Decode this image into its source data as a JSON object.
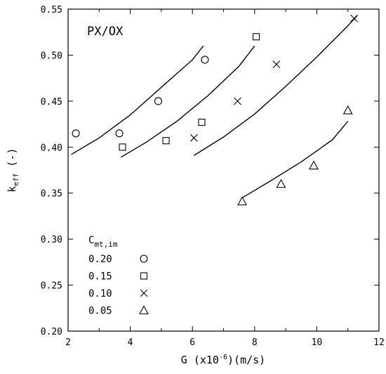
{
  "chart_data": {
    "type": "scatter",
    "title": "PX/OX",
    "xlabel": {
      "main": "G (x10",
      "sup": "-6",
      "rest": ")(m/s)"
    },
    "ylabel": {
      "main": "k",
      "sub": "eff",
      "rest": " (-)"
    },
    "xlim": [
      2,
      12
    ],
    "ylim": [
      0.2,
      0.55
    ],
    "x_ticks": [
      2,
      4,
      6,
      8,
      10,
      12
    ],
    "y_ticks": [
      0.2,
      0.25,
      0.3,
      0.35,
      0.4,
      0.45,
      0.5,
      0.55
    ],
    "y_tick_labels": [
      "0.20",
      "0.25",
      "0.30",
      "0.35",
      "0.40",
      "0.45",
      "0.50",
      "0.55"
    ],
    "legend": {
      "title_main": "C",
      "title_sub": "mt,im",
      "placement": "bottom-left"
    },
    "series": [
      {
        "name": "0.20",
        "marker": "circle",
        "points": [
          [
            2.25,
            0.415
          ],
          [
            3.65,
            0.415
          ],
          [
            4.9,
            0.45
          ],
          [
            6.4,
            0.495
          ]
        ],
        "fit": [
          [
            2.1,
            0.392
          ],
          [
            3.0,
            0.41
          ],
          [
            4.0,
            0.435
          ],
          [
            5.0,
            0.465
          ],
          [
            6.0,
            0.495
          ],
          [
            6.35,
            0.51
          ]
        ]
      },
      {
        "name": "0.15",
        "marker": "square",
        "points": [
          [
            3.75,
            0.4
          ],
          [
            5.15,
            0.407
          ],
          [
            6.3,
            0.427
          ],
          [
            8.05,
            0.52
          ]
        ],
        "fit": [
          [
            3.7,
            0.389
          ],
          [
            4.5,
            0.405
          ],
          [
            5.5,
            0.428
          ],
          [
            6.5,
            0.456
          ],
          [
            7.5,
            0.488
          ],
          [
            8.0,
            0.51
          ]
        ]
      },
      {
        "name": "0.10",
        "marker": "cross",
        "points": [
          [
            6.05,
            0.41
          ],
          [
            7.45,
            0.45
          ],
          [
            8.7,
            0.49
          ],
          [
            11.2,
            0.54
          ]
        ],
        "fit": [
          [
            6.05,
            0.391
          ],
          [
            7.0,
            0.411
          ],
          [
            8.0,
            0.436
          ],
          [
            9.0,
            0.466
          ],
          [
            10.0,
            0.498
          ],
          [
            11.0,
            0.532
          ],
          [
            11.3,
            0.543
          ]
        ]
      },
      {
        "name": "0.05",
        "marker": "triangle",
        "points": [
          [
            7.6,
            0.341
          ],
          [
            8.85,
            0.36
          ],
          [
            9.9,
            0.38
          ],
          [
            11.0,
            0.44
          ]
        ],
        "fit": [
          [
            7.6,
            0.345
          ],
          [
            8.5,
            0.363
          ],
          [
            9.5,
            0.384
          ],
          [
            10.5,
            0.408
          ],
          [
            11.0,
            0.428
          ]
        ]
      }
    ]
  }
}
